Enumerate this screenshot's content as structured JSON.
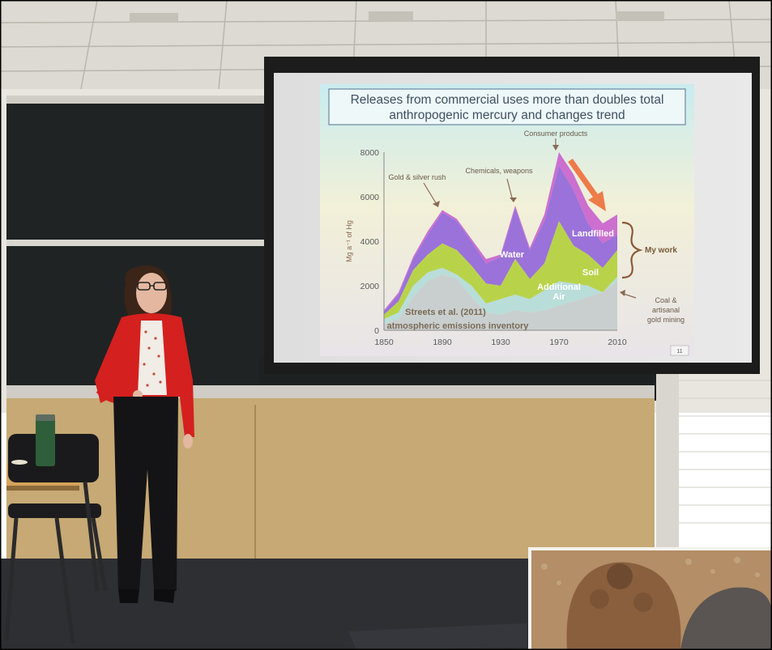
{
  "slide": {
    "title_line1": "Releases from commercial uses more than doubles total",
    "title_line2": "anthropogenic mercury and changes trend",
    "slide_number": "11"
  },
  "chart_data": {
    "type": "area",
    "ylabel": "Mg a⁻¹ of Hg",
    "ylim": [
      0,
      8000
    ],
    "xlim": [
      1850,
      2010
    ],
    "y_ticks": [
      "0",
      "2000",
      "4000",
      "6000",
      "8000"
    ],
    "x_ticks": [
      "1850",
      "1890",
      "1930",
      "1970",
      "2010"
    ],
    "x": [
      1850,
      1860,
      1870,
      1880,
      1890,
      1900,
      1910,
      1920,
      1930,
      1940,
      1950,
      1960,
      1970,
      1980,
      1990,
      2000,
      2010
    ],
    "series": [
      {
        "name": "atmospheric emissions inventory",
        "color": "#c9cfcf",
        "values": [
          300,
          500,
          1500,
          2200,
          2500,
          2300,
          1500,
          800,
          700,
          900,
          800,
          900,
          1100,
          1300,
          1500,
          1700,
          2200
        ]
      },
      {
        "name": "Additional Air",
        "color": "#b9ddd9",
        "values": [
          500,
          800,
          2000,
          2600,
          2800,
          2500,
          2000,
          1200,
          1400,
          1600,
          1400,
          1800,
          2200,
          2100,
          2000,
          1700,
          2400
        ]
      },
      {
        "name": "Soil",
        "color": "#b8d34a",
        "values": [
          700,
          1300,
          2700,
          3400,
          3900,
          3600,
          2900,
          2100,
          2000,
          3200,
          2300,
          3000,
          4900,
          3800,
          3400,
          2800,
          3600
        ]
      },
      {
        "name": "Water",
        "color": "#9b72d9",
        "values": [
          850,
          1600,
          3200,
          4300,
          5300,
          4900,
          4000,
          3000,
          3300,
          5500,
          3600,
          4900,
          7400,
          6300,
          4800,
          3900,
          4300
        ]
      },
      {
        "name": "Landfilled",
        "color": "#cc6fcf",
        "values": [
          900,
          1700,
          3300,
          4450,
          5400,
          5000,
          4100,
          3200,
          3400,
          5600,
          3700,
          5200,
          8000,
          7000,
          5600,
          4800,
          5200
        ]
      }
    ],
    "annotations": [
      {
        "text": "Gold & silver rush"
      },
      {
        "text": "Chemicals, weapons"
      },
      {
        "text": "Consumer products"
      },
      {
        "text": "Water"
      },
      {
        "text": "Landfilled"
      },
      {
        "text": "Soil"
      },
      {
        "text": "Additional"
      },
      {
        "text": "Air"
      },
      {
        "text": "Streets et al. (2011)"
      },
      {
        "text": "atmospheric emissions inventory"
      },
      {
        "text": "My work"
      },
      {
        "text": "Coal &"
      },
      {
        "text": "artisanal"
      },
      {
        "text": "gold mining"
      }
    ]
  }
}
